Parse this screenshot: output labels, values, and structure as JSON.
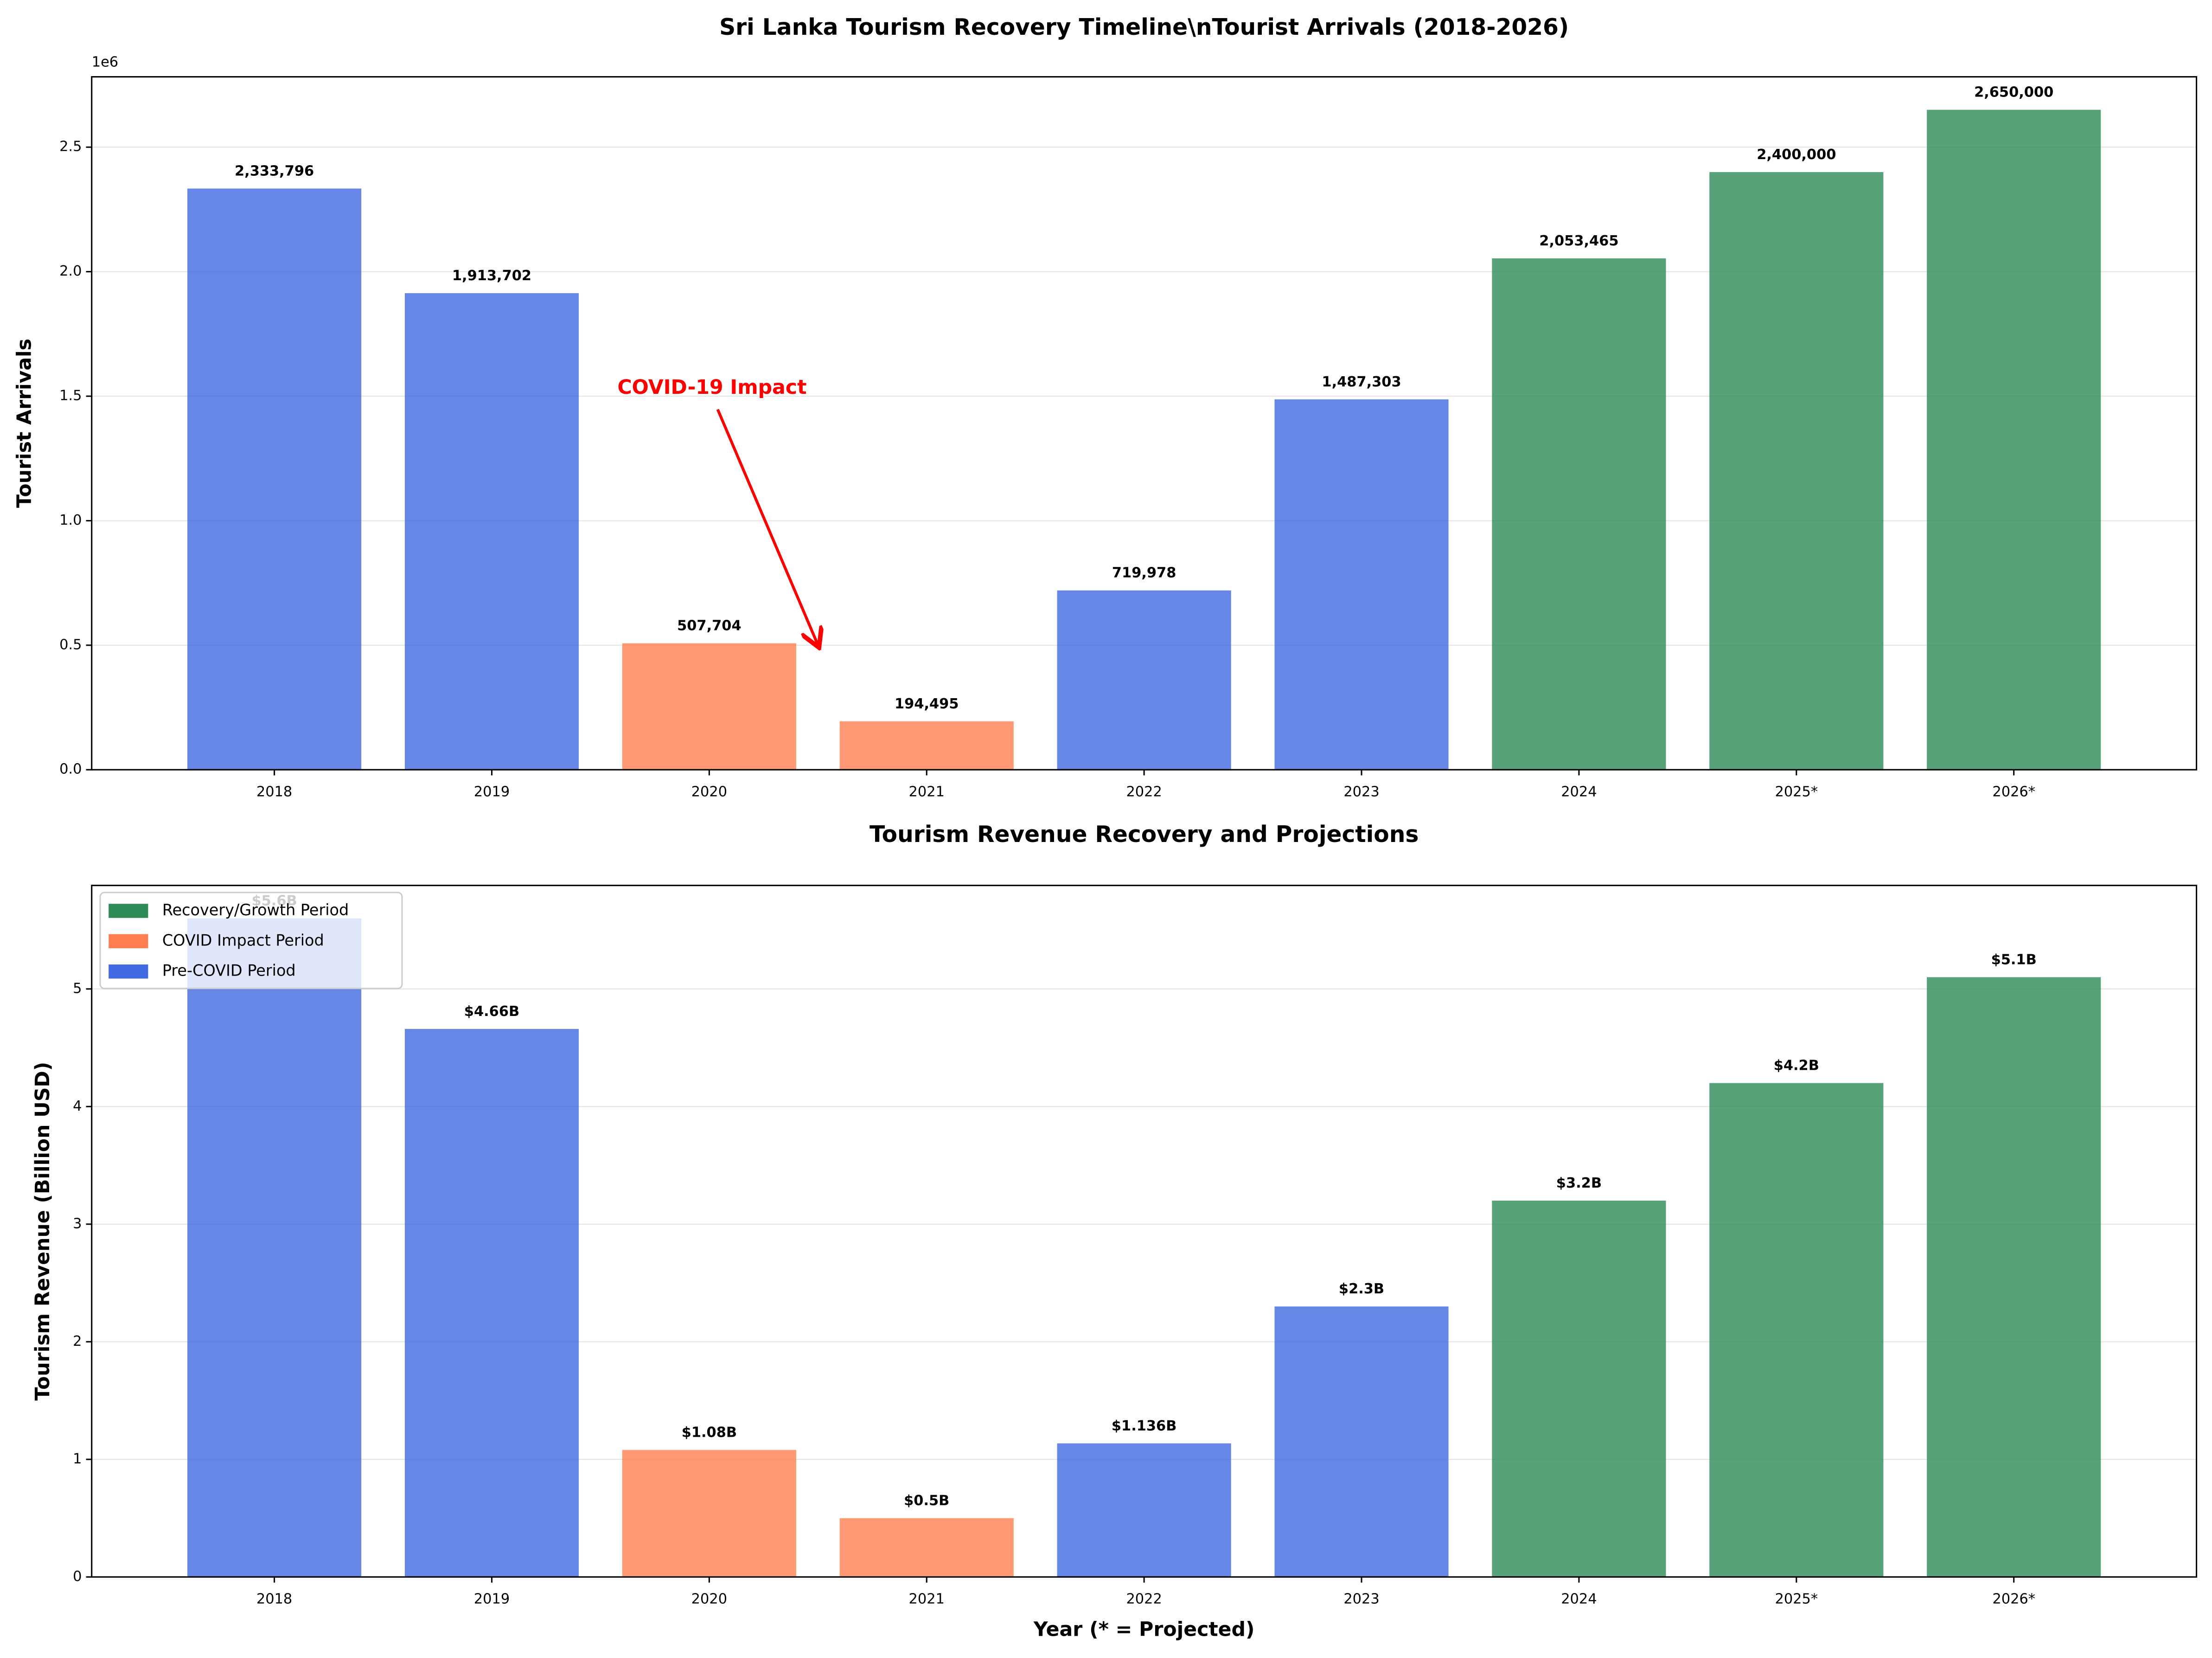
{
  "chart_data": [
    {
      "type": "bar",
      "title": "Sri Lanka Tourism Recovery Timeline\\nTourist Arrivals (2018-2026)",
      "y_label": "Tourist Arrivals",
      "y_offset_label": "1e6",
      "annotation": "COVID-19 Impact",
      "categories": [
        "2018",
        "2019",
        "2020",
        "2021",
        "2022",
        "2023",
        "2024",
        "2025*",
        "2026*"
      ],
      "values": [
        2333796,
        1913702,
        507704,
        194495,
        719978,
        1487303,
        2053465,
        2400000,
        2650000
      ],
      "value_labels": [
        "2,333,796",
        "1,913,702",
        "507,704",
        "194,495",
        "719,978",
        "1,487,303",
        "2,053,465",
        "2,400,000",
        "2,650,000"
      ],
      "colors": [
        "#4169E1",
        "#4169E1",
        "#FF7F50",
        "#FF7F50",
        "#4169E1",
        "#4169E1",
        "#2E8B57",
        "#2E8B57",
        "#2E8B57"
      ],
      "ylim": [
        0,
        2782500
      ],
      "yticks": [
        {
          "value": 0,
          "label": "0.0"
        },
        {
          "value": 500000,
          "label": "0.5"
        },
        {
          "value": 1000000,
          "label": "1.0"
        },
        {
          "value": 1500000,
          "label": "1.5"
        },
        {
          "value": 2000000,
          "label": "2.0"
        },
        {
          "value": 2500000,
          "label": "2.5"
        }
      ],
      "grid": true
    },
    {
      "type": "bar",
      "title": "Tourism Revenue Recovery and Projections",
      "y_label": "Tourism Revenue (Billion USD)",
      "x_label": "Year (* = Projected)",
      "categories": [
        "2018",
        "2019",
        "2020",
        "2021",
        "2022",
        "2023",
        "2024",
        "2025*",
        "2026*"
      ],
      "values": [
        5.6,
        4.66,
        1.08,
        0.5,
        1.136,
        2.3,
        3.2,
        4.2,
        5.1
      ],
      "value_labels": [
        "$5.6B",
        "$4.66B",
        "$1.08B",
        "$0.5B",
        "$1.136B",
        "$2.3B",
        "$3.2B",
        "$4.2B",
        "$5.1B"
      ],
      "colors": [
        "#4169E1",
        "#4169E1",
        "#FF7F50",
        "#FF7F50",
        "#4169E1",
        "#4169E1",
        "#2E8B57",
        "#2E8B57",
        "#2E8B57"
      ],
      "ylim": [
        0,
        5.88
      ],
      "yticks": [
        0,
        1,
        2,
        3,
        4,
        5
      ],
      "grid": true,
      "legend_position": "upper left",
      "legend": [
        {
          "name": "Recovery/Growth Period",
          "color": "#2E8B57"
        },
        {
          "name": "COVID Impact Period",
          "color": "#FF7F50"
        },
        {
          "name": "Pre-COVID Period",
          "color": "#4169E1"
        }
      ]
    }
  ]
}
